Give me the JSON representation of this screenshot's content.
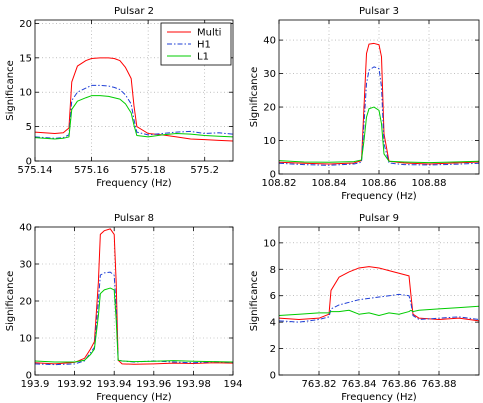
{
  "chart_data": [
    {
      "type": "line",
      "title": "Pulsar 2",
      "xlabel": "Frequency (Hz)",
      "ylabel": "Significance",
      "xlim": [
        575.14,
        575.21
      ],
      "ylim": [
        0,
        20.5
      ],
      "xticks": [
        575.14,
        575.16,
        575.18,
        575.2
      ],
      "xticklabels": [
        "575.14",
        "575.16",
        "575.18",
        "575.2"
      ],
      "yticks": [
        0,
        5,
        10,
        15,
        20
      ],
      "yticklabels": [
        "0",
        "5",
        "10",
        "15",
        "20"
      ],
      "grid": true,
      "legend": {
        "placement": "top-right",
        "entries": [
          "Multi",
          "H1",
          "L1"
        ]
      },
      "series": [
        {
          "name": "Multi",
          "color": "#ff0000",
          "dash": "",
          "x": [
            575.14,
            575.147,
            575.15,
            575.152,
            575.153,
            575.155,
            575.158,
            575.16,
            575.163,
            575.166,
            575.168,
            575.17,
            575.172,
            575.174,
            575.175,
            575.176,
            575.18,
            575.185,
            575.19,
            575.195,
            575.2,
            575.205,
            575.21
          ],
          "y": [
            4.2,
            4.0,
            4.1,
            4.8,
            11.5,
            13.8,
            14.6,
            14.9,
            15.0,
            15.0,
            14.9,
            14.6,
            13.6,
            12.0,
            8.0,
            5.0,
            4.0,
            3.8,
            3.5,
            3.2,
            3.1,
            3.0,
            2.9
          ]
        },
        {
          "name": "H1",
          "color": "#1f3fd6",
          "dash": "5,2,1.5,2",
          "x": [
            575.14,
            575.147,
            575.15,
            575.152,
            575.153,
            575.155,
            575.158,
            575.16,
            575.163,
            575.166,
            575.168,
            575.17,
            575.172,
            575.174,
            575.175,
            575.176,
            575.18,
            575.185,
            575.19,
            575.195,
            575.2,
            575.205,
            575.21
          ],
          "y": [
            3.5,
            3.3,
            3.4,
            3.8,
            8.8,
            10.0,
            10.6,
            11.0,
            11.0,
            10.9,
            10.7,
            10.4,
            9.6,
            8.3,
            6.0,
            4.2,
            3.8,
            4.0,
            4.2,
            4.3,
            4.0,
            4.1,
            3.9
          ]
        },
        {
          "name": "L1",
          "color": "#00cc00",
          "dash": "",
          "x": [
            575.14,
            575.147,
            575.15,
            575.152,
            575.153,
            575.155,
            575.158,
            575.16,
            575.163,
            575.166,
            575.168,
            575.17,
            575.172,
            575.174,
            575.175,
            575.176,
            575.18,
            575.185,
            575.19,
            575.195,
            575.2,
            575.205,
            575.21
          ],
          "y": [
            3.4,
            3.2,
            3.3,
            3.5,
            7.5,
            8.7,
            9.2,
            9.5,
            9.5,
            9.4,
            9.2,
            9.0,
            8.3,
            7.0,
            5.2,
            3.7,
            3.5,
            3.8,
            4.0,
            3.9,
            3.7,
            3.6,
            3.5
          ]
        }
      ]
    },
    {
      "type": "line",
      "title": "Pulsar 3",
      "xlabel": "Frequency (Hz)",
      "ylabel": "Significance",
      "xlim": [
        108.82,
        108.9
      ],
      "ylim": [
        0,
        46
      ],
      "xticks": [
        108.82,
        108.84,
        108.86,
        108.88
      ],
      "xticklabels": [
        "108.82",
        "108.84",
        "108.86",
        "108.88"
      ],
      "yticks": [
        0,
        10,
        20,
        30,
        40
      ],
      "yticklabels": [
        "0",
        "10",
        "20",
        "30",
        "40"
      ],
      "grid": true,
      "series": [
        {
          "name": "Multi",
          "color": "#ff0000",
          "dash": "",
          "x": [
            108.82,
            108.83,
            108.84,
            108.85,
            108.853,
            108.854,
            108.855,
            108.856,
            108.858,
            108.86,
            108.861,
            108.862,
            108.864,
            108.87,
            108.88,
            108.89,
            108.9
          ],
          "y": [
            3.5,
            3.2,
            3.0,
            3.3,
            4.0,
            20.0,
            36.0,
            38.8,
            39.0,
            38.6,
            35.0,
            12.0,
            3.8,
            3.3,
            3.0,
            3.3,
            3.6
          ]
        },
        {
          "name": "H1",
          "color": "#1f3fd6",
          "dash": "5,2,1.5,2",
          "x": [
            108.82,
            108.83,
            108.84,
            108.85,
            108.853,
            108.854,
            108.855,
            108.856,
            108.858,
            108.86,
            108.861,
            108.862,
            108.864,
            108.87,
            108.88,
            108.89,
            108.9
          ],
          "y": [
            3.2,
            2.8,
            2.6,
            3.0,
            3.5,
            15.0,
            27.0,
            31.0,
            32.0,
            31.5,
            26.0,
            9.0,
            3.3,
            2.8,
            2.7,
            2.9,
            3.2
          ]
        },
        {
          "name": "L1",
          "color": "#00cc00",
          "dash": "",
          "x": [
            108.82,
            108.83,
            108.84,
            108.85,
            108.853,
            108.854,
            108.855,
            108.856,
            108.858,
            108.86,
            108.861,
            108.862,
            108.864,
            108.87,
            108.88,
            108.89,
            108.9
          ],
          "y": [
            4.0,
            3.6,
            3.5,
            3.7,
            4.2,
            10.0,
            17.0,
            19.5,
            20.0,
            19.0,
            15.0,
            6.0,
            3.8,
            3.6,
            3.4,
            3.6,
            3.8
          ]
        }
      ]
    },
    {
      "type": "line",
      "title": "Pulsar 8",
      "xlabel": "Frequency (Hz)",
      "ylabel": "Significance",
      "xlim": [
        193.9,
        194
      ],
      "ylim": [
        0,
        40
      ],
      "xticks": [
        193.9,
        193.92,
        193.94,
        193.96,
        193.98,
        194
      ],
      "xticklabels": [
        "193.9",
        "193.92",
        "193.94",
        "193.96",
        "193.98",
        "194"
      ],
      "yticks": [
        0,
        10,
        20,
        30,
        40
      ],
      "yticklabels": [
        "0",
        "10",
        "20",
        "30",
        "40"
      ],
      "grid": true,
      "series": [
        {
          "name": "Multi",
          "color": "#ff0000",
          "dash": "",
          "x": [
            193.9,
            193.91,
            193.92,
            193.925,
            193.928,
            193.93,
            193.932,
            193.933,
            193.935,
            193.938,
            193.94,
            193.941,
            193.942,
            193.944,
            193.95,
            193.96,
            193.97,
            193.98,
            193.99,
            194
          ],
          "y": [
            3.3,
            3.0,
            3.4,
            4.5,
            7.0,
            9.0,
            25.0,
            38.0,
            39.0,
            39.5,
            38.0,
            25.0,
            4.0,
            3.0,
            2.9,
            3.0,
            3.2,
            3.1,
            3.3,
            3.2
          ]
        },
        {
          "name": "H1",
          "color": "#1f3fd6",
          "dash": "5,2,1.5,2",
          "x": [
            193.9,
            193.91,
            193.92,
            193.925,
            193.928,
            193.93,
            193.932,
            193.933,
            193.935,
            193.938,
            193.94,
            193.941,
            193.942,
            193.944,
            193.95,
            193.96,
            193.97,
            193.98,
            193.99,
            194
          ],
          "y": [
            3.0,
            2.8,
            3.0,
            3.8,
            6.0,
            7.5,
            20.0,
            27.0,
            27.6,
            27.8,
            27.0,
            18.0,
            4.0,
            3.8,
            3.5,
            3.8,
            3.5,
            3.3,
            3.6,
            3.4
          ]
        },
        {
          "name": "L1",
          "color": "#00cc00",
          "dash": "",
          "x": [
            193.9,
            193.91,
            193.92,
            193.925,
            193.928,
            193.93,
            193.932,
            193.933,
            193.935,
            193.938,
            193.94,
            193.941,
            193.942,
            193.944,
            193.95,
            193.96,
            193.97,
            193.98,
            193.99,
            194
          ],
          "y": [
            3.8,
            3.5,
            3.5,
            4.0,
            5.5,
            7.0,
            16.0,
            22.0,
            23.0,
            23.5,
            23.0,
            15.0,
            4.0,
            3.8,
            3.6,
            3.7,
            3.9,
            3.7,
            3.6,
            3.5
          ]
        }
      ]
    },
    {
      "type": "line",
      "title": "Pulsar 9",
      "xlabel": "Frequency (Hz)",
      "ylabel": "Significance",
      "xlim": [
        763.8,
        763.9
      ],
      "ylim": [
        0,
        11.2
      ],
      "xticks": [
        763.82,
        763.84,
        763.86,
        763.88
      ],
      "xticklabels": [
        "763.82",
        "763.84",
        "763.86",
        "763.88"
      ],
      "yticks": [
        0,
        2,
        4,
        6,
        8,
        10
      ],
      "yticklabels": [
        "0",
        "2",
        "4",
        "6",
        "8",
        "10"
      ],
      "grid": true,
      "series": [
        {
          "name": "Multi",
          "color": "#ff0000",
          "dash": "",
          "x": [
            763.8,
            763.81,
            763.82,
            763.825,
            763.826,
            763.83,
            763.835,
            763.84,
            763.845,
            763.85,
            763.855,
            763.86,
            763.865,
            763.866,
            763.867,
            763.87,
            763.88,
            763.89,
            763.9
          ],
          "y": [
            4.3,
            4.2,
            4.3,
            4.6,
            6.4,
            7.4,
            7.8,
            8.1,
            8.2,
            8.1,
            7.9,
            7.7,
            7.5,
            6.0,
            4.6,
            4.3,
            4.2,
            4.3,
            4.1
          ]
        },
        {
          "name": "H1",
          "color": "#1f3fd6",
          "dash": "5,2,1.5,2",
          "x": [
            763.8,
            763.81,
            763.82,
            763.825,
            763.826,
            763.83,
            763.835,
            763.84,
            763.845,
            763.85,
            763.855,
            763.86,
            763.865,
            763.866,
            763.867,
            763.87,
            763.88,
            763.89,
            763.9
          ],
          "y": [
            4.1,
            4.0,
            4.2,
            4.4,
            5.0,
            5.3,
            5.5,
            5.7,
            5.8,
            5.9,
            6.0,
            6.1,
            6.0,
            5.4,
            4.5,
            4.2,
            4.3,
            4.4,
            4.2
          ]
        },
        {
          "name": "L1",
          "color": "#00cc00",
          "dash": "",
          "x": [
            763.8,
            763.81,
            763.82,
            763.825,
            763.826,
            763.83,
            763.835,
            763.84,
            763.845,
            763.85,
            763.855,
            763.86,
            763.865,
            763.866,
            763.867,
            763.87,
            763.88,
            763.89,
            763.9
          ],
          "y": [
            4.5,
            4.6,
            4.7,
            4.7,
            4.8,
            4.8,
            4.9,
            4.6,
            4.7,
            4.5,
            4.7,
            4.6,
            4.8,
            4.9,
            4.8,
            4.9,
            5.0,
            5.1,
            5.2
          ]
        }
      ]
    }
  ]
}
